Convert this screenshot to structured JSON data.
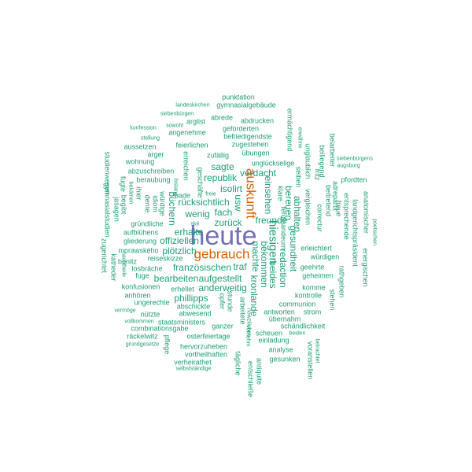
{
  "colors": {
    "small": "#1b9e77",
    "medium": "#d95f02",
    "large": "#7570b3"
  },
  "words": {
    "heute": "heute",
    "gebrauch": "gebrauch",
    "auskunft": "auskunft",
    "punktation": "punktation",
    "landeskirchen": "landeskirchen",
    "gymnasialgebaeude": "gymnasialgebäude",
    "siebenbuergen": "siebenbürgen",
    "arglist": "arglist",
    "abrede": "abrede",
    "abdrucken": "abdrucken",
    "konfession": "konfession",
    "sowohl": "sowohl",
    "geforderten": "geforderten",
    "stellung": "stellung",
    "angenehme": "angenehme",
    "befriedigendste": "befriedigendste",
    "feierlichen": "feierlichen",
    "zugestehen": "zugestehen",
    "aussetzen": "aussetzen",
    "arger": "arger",
    "uebungen": "übungen",
    "zufaellig": "zufällig",
    "ungluecklige": "unglückselige",
    "wohnung": "wohnung",
    "sagte": "sagte",
    "abzuschreiben": "abzuschreiben",
    "verdacht": "verdacht",
    "beraubung": "beraubung",
    "republik": "republik",
    "isolirt": "isolirt",
    "ruecksichtlich": "rücksichtlich",
    "fach": "fach",
    "usw": "usw",
    "wenig": "wenig",
    "zurueck": "zurück",
    "freunde": "freunde",
    "gruendliche": "gründliche",
    "aufbluehens": "aufblühens",
    "gliederung": "gliederung",
    "erhalte": "erhalte",
    "offiziellen": "offiziellen",
    "morawskeho": "morawského",
    "ploetzlich": "plötzlich",
    "bonitz": "bonitz",
    "reiseskizze": "reiseskizze",
    "losbraeche": "losbräche",
    "franzoesischen": "französischen",
    "traf": "traf",
    "fuge": "fuge",
    "bearbeiten": "bearbeiten",
    "aufgestellt": "aufgestellt",
    "konfusionen": "konfusionen",
    "anderweitig": "anderweitig",
    "erhellet": "erhellet",
    "anhoeren": "anhören",
    "phillipps": "phillipps",
    "ungerechte": "ungerechte",
    "abschickte": "abschickte",
    "vermoege": "vermöge",
    "abwesend": "abwesend",
    "nuetzte": "nützte",
    "vollkommen": "vollkommen",
    "staatsministers": "staatsministers",
    "combinationsgabe": "combinationsgabe",
    "raeckelwitz": "räckelwitz",
    "osterfeiertage": "osterfeiertage",
    "grundgesetze": "grundgesetze",
    "hervorzuheben": "hervorzuheben",
    "vortheilhaften": "vortheilhaften",
    "verheirathet": "verheirathet",
    "selbststaendige": "selbstständige",
    "ganzer": "ganzer",
    "erleichtert": "erleichtert",
    "wuerdigen": "würdigen",
    "geehrte": "geehrte",
    "geheimen": "geheimen",
    "komme": "komme",
    "kontrolle": "kontrolle",
    "communion": "communion",
    "strom": "strom",
    "antworten": "antworten",
    "uebernahm": "übernahm",
    "schaendlichkeit": "schändlichkeit",
    "scheuen": "scheuen",
    "beiden": "beiden",
    "einladung": "einladung",
    "analyse": "analyse",
    "gesunken": "gesunken",
    "bade": "bade",
    "freie": "freie",
    "ske": "ské",
    "siebenbuergens": "siebenbürgens",
    "augsburg": "augsburg",
    "pfordten": "pfordten",
    "studienwesen": "studienwesen",
    "gymnasialstudien": "gymnasialstudien",
    "jasagen": "jasagen",
    "begibt": "begibt",
    "bekaemen": "bekämen",
    "zugerichtet": "zugerichtet",
    "katheder": "katheder",
    "nachtheile": "nachtheile",
    "fugte": "fugte",
    "dente": "dente",
    "idiom": "idiom",
    "wuerdige": "würdige",
    "ihier": "ihier",
    "erreichen": "erreichen",
    "bislang": "bislang",
    "geschaefte": "geschäfte",
    "buechern": "büchern",
    "machte": "machte",
    "bekommen": "bekommen",
    "kronlande": "kronlande",
    "beides": "beides",
    "hiesigen": "hiesigen",
    "einsehen": "einsehen",
    "ermaechtigend": "ermächtigend",
    "erwaehne": "erwähne",
    "klare": "klare",
    "bereuen": "bereuen",
    "abhalten": "abhalten",
    "gesundheit": "gesundheit",
    "redaction": "redaction",
    "ferdinandeum": "ferdinandeum",
    "vergleichen": "vergleichen",
    "correctur": "correctur",
    "seiben": "seiben",
    "unglaublich": "unglaublich",
    "fritz": "fritz",
    "beiliegend": "beiliegend",
    "beiarbeiter": "beiarbeiter",
    "beitretend": "beitretend",
    "adrepartit": "adrepartit",
    "freue": "freue",
    "entsprechende": "entsprechende",
    "landgerichtspraesident": "landgerichtspräsident",
    "anatomischer": "anatomischer",
    "energischen": "energischen",
    "rathgeben": "rathgeben",
    "poetischen": "poetischen",
    "stehen": "stehen",
    "opfer": "opfer",
    "stunde": "stunde",
    "arbeitete": "arbeitete",
    "vornehm": "vornehm",
    "taegliche": "tägliche",
    "entschliesse": "entschließe",
    "antiquite": "antiquite",
    "voranstellen": "voranstellen",
    "betrachtet": "betrachtet",
    "pflege": "pflege",
    "bilanzen": "bilanzen",
    "ausnahmsweise": "ausnahmsweise",
    "nowzilichen": "nowzilichen",
    "sondern": "sondern"
  }
}
